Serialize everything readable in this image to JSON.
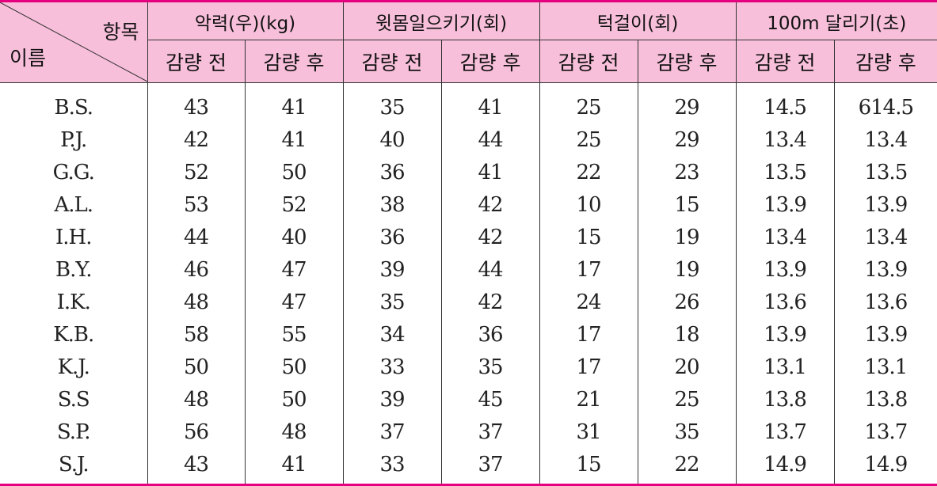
{
  "table": {
    "corner_item_label": "항목",
    "corner_name_label": "이름",
    "groups": [
      {
        "label": "악력(우)(kg)"
      },
      {
        "label": "윗몸일으키기(회)"
      },
      {
        "label": "턱걸이(회)"
      },
      {
        "label": "100m 달리기(초)"
      }
    ],
    "sub_headers": [
      "감량 전",
      "감량 후",
      "감량 전",
      "감량 후",
      "감량 전",
      "감량 후",
      "감량 전",
      "감량 후"
    ],
    "rows": [
      {
        "name": "B.S.",
        "values": [
          "43",
          "41",
          "35",
          "41",
          "25",
          "29",
          "14.5",
          "614.5"
        ]
      },
      {
        "name": "P.J.",
        "values": [
          "42",
          "41",
          "40",
          "44",
          "25",
          "29",
          "13.4",
          "13.4"
        ]
      },
      {
        "name": "G.G.",
        "values": [
          "52",
          "50",
          "36",
          "41",
          "22",
          "23",
          "13.5",
          "13.5"
        ]
      },
      {
        "name": "A.L.",
        "values": [
          "53",
          "52",
          "38",
          "42",
          "10",
          "15",
          "13.9",
          "13.9"
        ]
      },
      {
        "name": "I.H.",
        "values": [
          "44",
          "40",
          "36",
          "42",
          "15",
          "19",
          "13.4",
          "13.4"
        ]
      },
      {
        "name": "B.Y.",
        "values": [
          "46",
          "47",
          "39",
          "44",
          "17",
          "19",
          "13.9",
          "13.9"
        ]
      },
      {
        "name": "I.K.",
        "values": [
          "48",
          "47",
          "35",
          "42",
          "24",
          "26",
          "13.6",
          "13.6"
        ]
      },
      {
        "name": "K.B.",
        "values": [
          "58",
          "55",
          "34",
          "36",
          "17",
          "18",
          "13.9",
          "13.9"
        ]
      },
      {
        "name": "K.J.",
        "values": [
          "50",
          "50",
          "33",
          "35",
          "17",
          "20",
          "13.1",
          "13.1"
        ]
      },
      {
        "name": "S.S",
        "values": [
          "48",
          "50",
          "39",
          "45",
          "21",
          "25",
          "13.8",
          "13.8"
        ]
      },
      {
        "name": "S.P.",
        "values": [
          "56",
          "48",
          "37",
          "37",
          "31",
          "35",
          "13.7",
          "13.7"
        ]
      },
      {
        "name": "S.J.",
        "values": [
          "43",
          "41",
          "33",
          "37",
          "15",
          "22",
          "14.9",
          "14.9"
        ]
      }
    ]
  },
  "colors": {
    "header_bg": "#f8bfda",
    "border_accent": "#e4007f"
  }
}
